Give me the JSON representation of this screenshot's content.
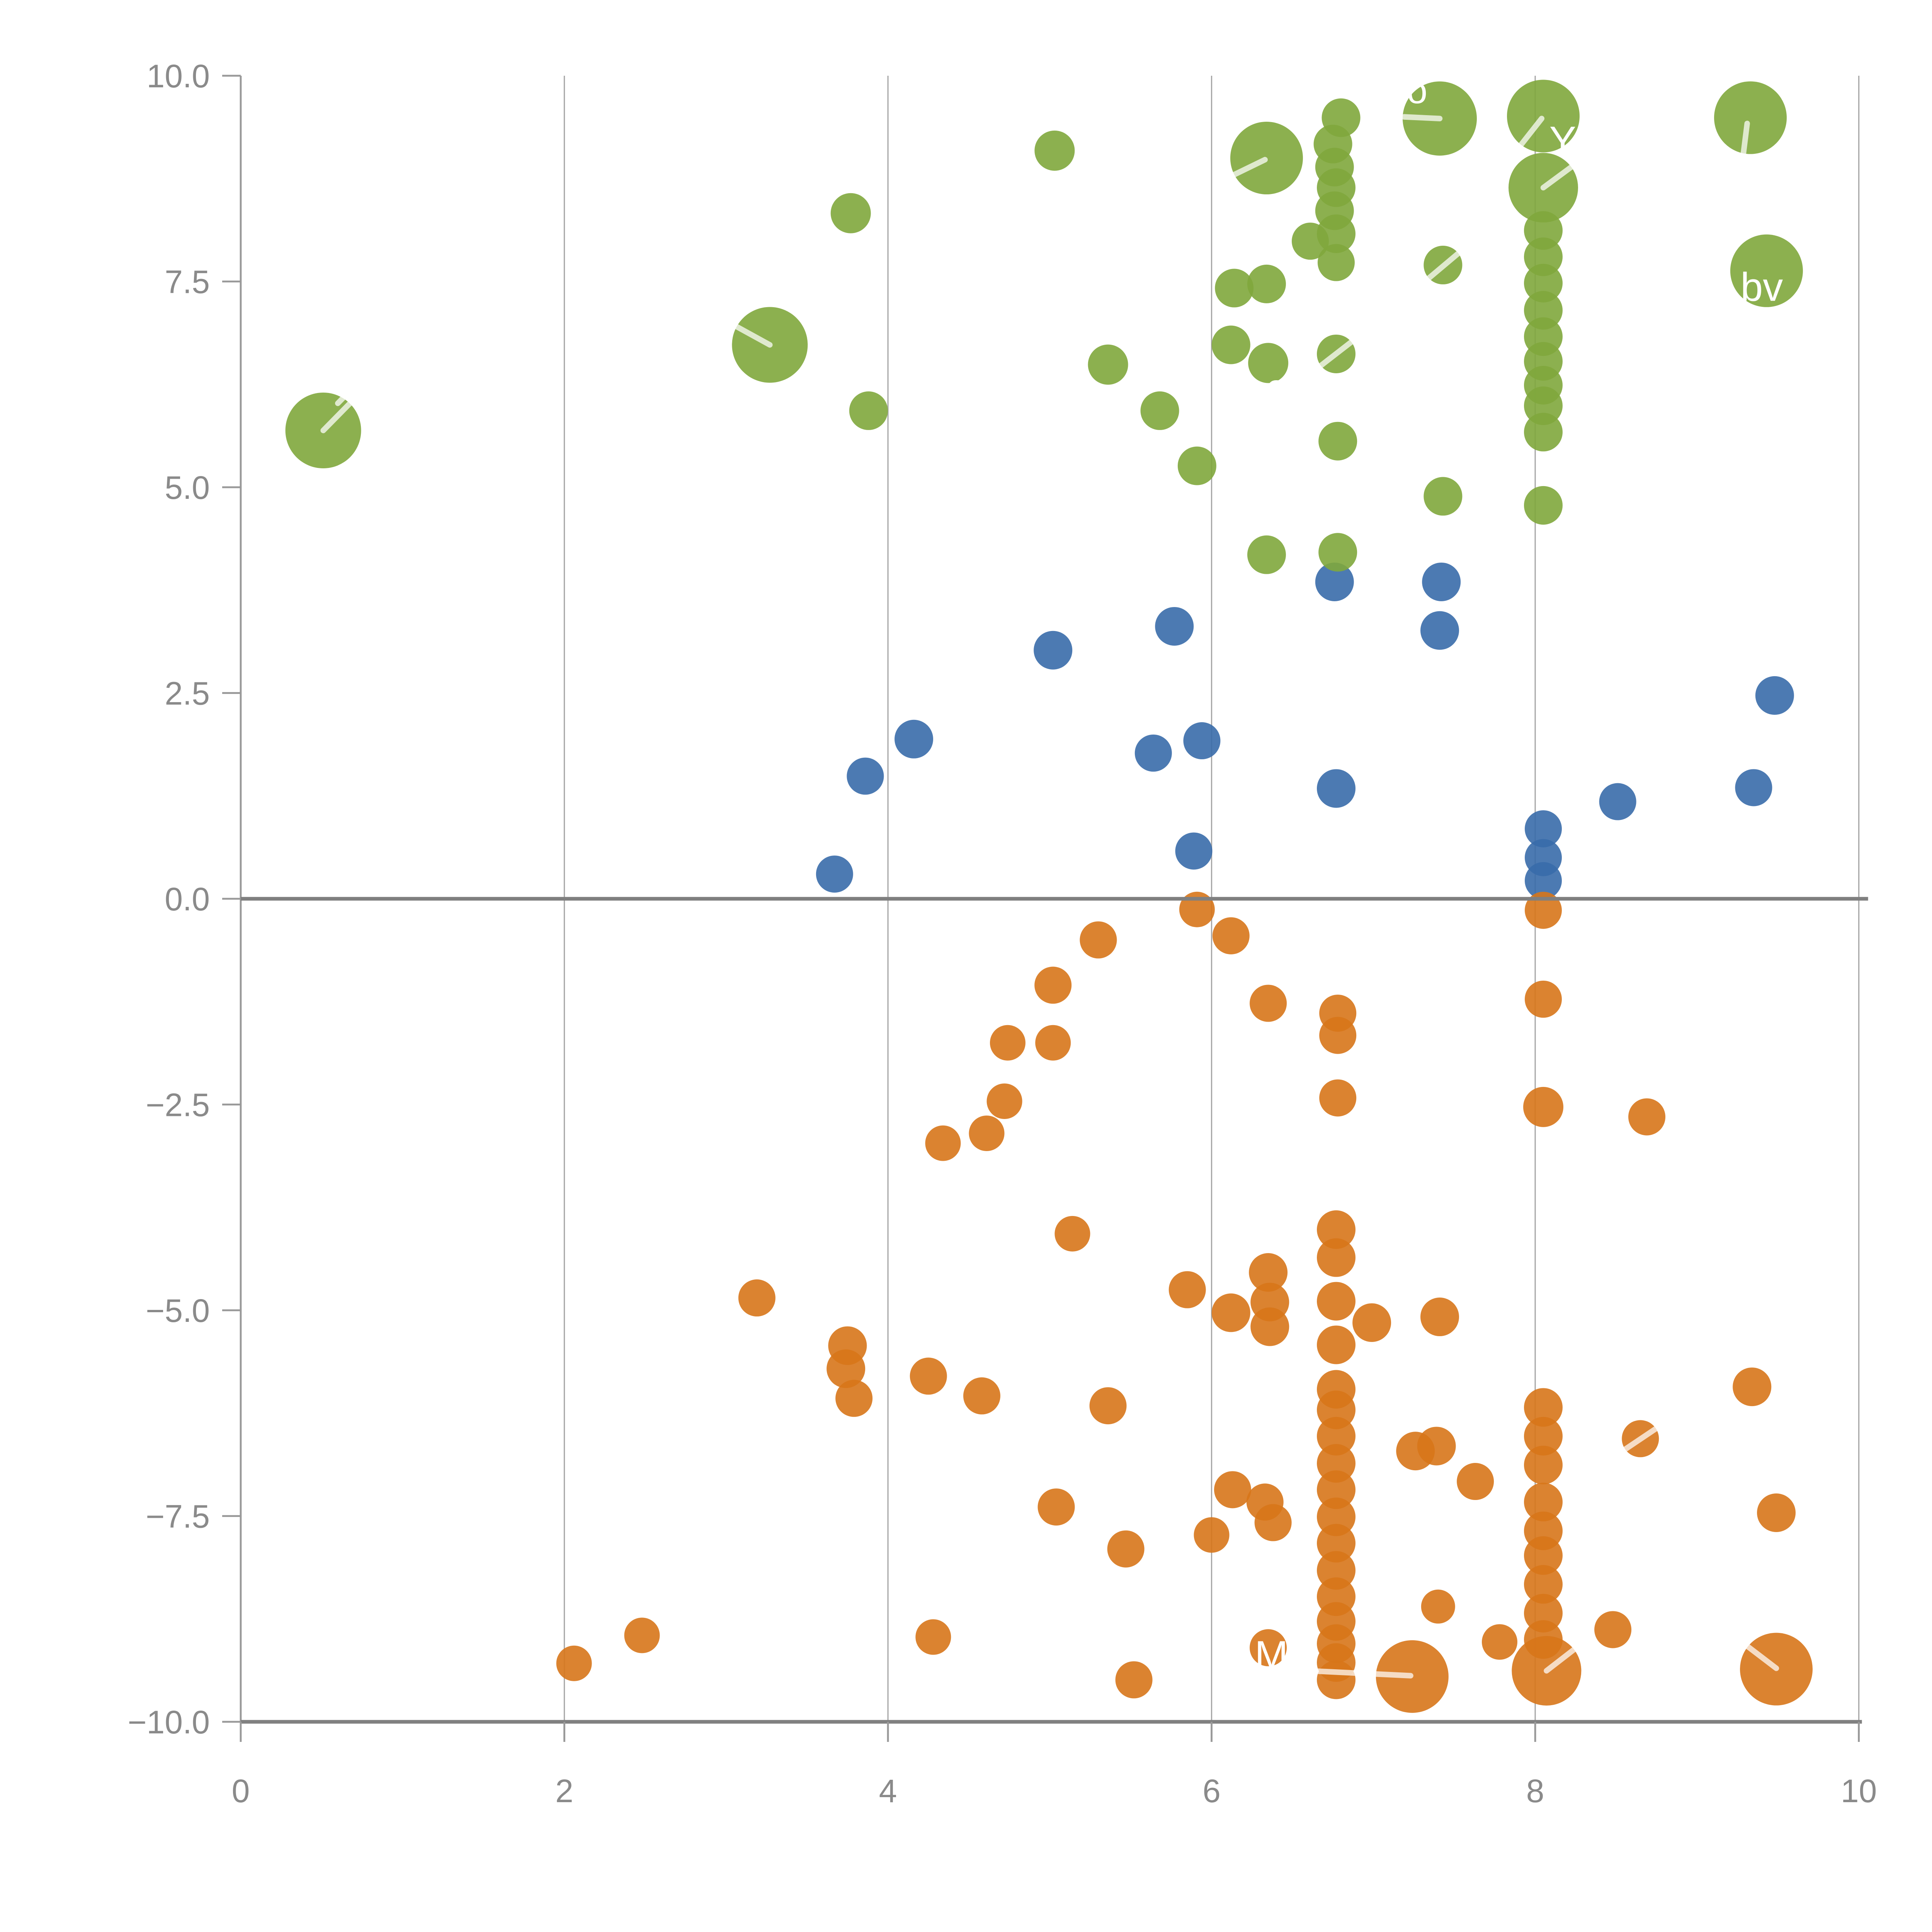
{
  "chart_data": {
    "type": "scatter",
    "title": "",
    "xlabel": "",
    "ylabel": "",
    "xlim": [
      0,
      10
    ],
    "ylim": [
      -10,
      10
    ],
    "x_tick_labels": [
      "0",
      "2",
      "4",
      "6",
      "8",
      "10"
    ],
    "x_tick_values": [
      0,
      2,
      4,
      6,
      8,
      10
    ],
    "y_tick_labels": [
      "10.0",
      "7.5",
      "5.0",
      "2.5",
      "0.0",
      "−2.5",
      "−5.0",
      "−7.5",
      "−10.0"
    ],
    "y_tick_values": [
      10,
      7.5,
      5,
      2.5,
      0,
      -2.5,
      -5,
      -7.5,
      -10
    ],
    "grid": {
      "vertical_at": [
        2,
        4,
        6,
        8,
        10
      ],
      "horizontal": false,
      "zero_line_y": 0
    },
    "colors": {
      "green": "#7FA73C",
      "blue": "#386BAA",
      "orange": "#D7751A",
      "marker_opacity": 0.9,
      "spine": "#999999",
      "bottom_spine": "#808080",
      "zero_line": "#7F7F7F",
      "gridline": "#A8A8A8",
      "tick_label": "#8A8A8A",
      "annotation": "#FFFFFF"
    },
    "series": [
      {
        "name": "blue",
        "color": "#386BAA",
        "points": [
          [
            3.67,
            0.3,
            12
          ],
          [
            3.86,
            1.49,
            12
          ],
          [
            4.16,
            1.94,
            12.5
          ],
          [
            5.02,
            3.02,
            12.5
          ],
          [
            5.77,
            3.31,
            12.5
          ],
          [
            5.64,
            1.77,
            12
          ],
          [
            5.94,
            1.92,
            12
          ],
          [
            5.89,
            0.58,
            12
          ],
          [
            6.76,
            3.85,
            12.5
          ],
          [
            7.42,
            3.85,
            12.5
          ],
          [
            7.41,
            3.26,
            12.5
          ],
          [
            6.77,
            1.34,
            12.5
          ],
          [
            8.51,
            1.18,
            12
          ],
          [
            9.35,
            1.35,
            12
          ],
          [
            9.48,
            2.47,
            12.5
          ],
          [
            8.05,
            0.85,
            12
          ],
          [
            8.05,
            0.5,
            12
          ],
          [
            8.05,
            0.22,
            12
          ]
        ]
      },
      {
        "name": "green",
        "color": "#7FA73C",
        "points": [
          [
            0.51,
            5.69,
            24.5
          ],
          [
            3.27,
            6.73,
            24.5
          ],
          [
            3.77,
            8.33,
            13
          ],
          [
            3.88,
            5.93,
            12.5
          ],
          [
            5.03,
            9.09,
            13
          ],
          [
            5.36,
            6.49,
            13
          ],
          [
            5.68,
            5.93,
            12.5
          ],
          [
            5.91,
            5.26,
            12.5
          ],
          [
            6.34,
            9.0,
            23.5
          ],
          [
            6.8,
            9.49,
            12.5
          ],
          [
            6.75,
            9.17,
            12.5
          ],
          [
            6.76,
            8.89,
            12.5
          ],
          [
            6.77,
            8.64,
            12.5
          ],
          [
            6.76,
            8.36,
            12.5
          ],
          [
            6.77,
            8.08,
            12.5
          ],
          [
            6.61,
            7.99,
            12
          ],
          [
            6.77,
            7.73,
            12
          ],
          [
            6.12,
            6.73,
            12.5
          ],
          [
            6.35,
            6.51,
            13
          ],
          [
            6.77,
            6.62,
            12.5
          ],
          [
            6.14,
            7.42,
            12.5
          ],
          [
            6.34,
            7.47,
            12.5
          ],
          [
            7.41,
            9.48,
            24
          ],
          [
            7.43,
            7.7,
            12.5
          ],
          [
            8.05,
            9.51,
            23.5
          ],
          [
            8.05,
            8.64,
            22.5
          ],
          [
            8.05,
            8.12,
            12.5
          ],
          [
            8.05,
            7.8,
            12.5
          ],
          [
            8.05,
            7.48,
            12.5
          ],
          [
            8.05,
            7.15,
            12.5
          ],
          [
            8.05,
            6.83,
            12.5
          ],
          [
            8.05,
            6.53,
            12.5
          ],
          [
            8.05,
            6.24,
            12.5
          ],
          [
            8.05,
            5.99,
            12.5
          ],
          [
            8.05,
            5.67,
            12.5
          ],
          [
            8.05,
            4.78,
            12.5
          ],
          [
            9.33,
            9.49,
            23.5
          ],
          [
            9.43,
            7.63,
            23.5
          ],
          [
            6.78,
            4.21,
            12.5
          ],
          [
            6.34,
            4.18,
            12.5
          ],
          [
            7.43,
            4.89,
            12.5
          ],
          [
            6.78,
            5.56,
            12.5
          ]
        ]
      },
      {
        "name": "orange",
        "color": "#D7751A",
        "points": [
          [
            5.91,
            -0.13,
            11.5
          ],
          [
            6.12,
            -0.45,
            12
          ],
          [
            5.3,
            -0.5,
            12
          ],
          [
            5.02,
            -1.05,
            12
          ],
          [
            6.35,
            -1.27,
            12
          ],
          [
            4.74,
            -1.75,
            11.5
          ],
          [
            5.02,
            -1.75,
            11.5
          ],
          [
            4.72,
            -2.46,
            11.5
          ],
          [
            4.61,
            -2.85,
            11.5
          ],
          [
            4.34,
            -2.97,
            11.5
          ],
          [
            5.14,
            -4.07,
            11.5
          ],
          [
            6.78,
            -1.39,
            12
          ],
          [
            6.78,
            -1.66,
            12
          ],
          [
            6.78,
            -2.42,
            12
          ],
          [
            8.05,
            -0.14,
            12
          ],
          [
            8.05,
            -1.22,
            12
          ],
          [
            8.05,
            -2.53,
            13
          ],
          [
            8.69,
            -2.65,
            12
          ],
          [
            3.19,
            -4.85,
            12
          ],
          [
            3.75,
            -5.43,
            12.5
          ],
          [
            3.74,
            -5.71,
            12.5
          ],
          [
            3.79,
            -6.07,
            12
          ],
          [
            4.25,
            -5.8,
            12
          ],
          [
            4.58,
            -6.04,
            12
          ],
          [
            5.36,
            -6.16,
            12
          ],
          [
            5.04,
            -7.39,
            12
          ],
          [
            5.47,
            -7.9,
            12
          ],
          [
            6.0,
            -7.73,
            11.5
          ],
          [
            6.13,
            -7.18,
            12
          ],
          [
            6.33,
            -7.33,
            12
          ],
          [
            6.38,
            -7.58,
            12
          ],
          [
            2.06,
            -9.29,
            11.5
          ],
          [
            2.48,
            -8.95,
            11.5
          ],
          [
            4.28,
            -8.97,
            11.5
          ],
          [
            5.52,
            -9.49,
            12
          ],
          [
            5.85,
            -4.75,
            12
          ],
          [
            6.35,
            -4.54,
            12.5
          ],
          [
            6.36,
            -4.9,
            12.5
          ],
          [
            6.36,
            -5.2,
            12.5
          ],
          [
            6.12,
            -5.03,
            12.5
          ],
          [
            6.99,
            -5.15,
            12.5
          ],
          [
            6.77,
            -4.02,
            12.5
          ],
          [
            6.77,
            -4.36,
            12.5
          ],
          [
            6.77,
            -4.89,
            12.5
          ],
          [
            6.77,
            -5.42,
            12.5
          ],
          [
            6.77,
            -5.96,
            12.5
          ],
          [
            6.77,
            -6.21,
            12.5
          ],
          [
            6.77,
            -6.53,
            12.5
          ],
          [
            6.77,
            -6.86,
            12.5
          ],
          [
            6.77,
            -7.18,
            12.5
          ],
          [
            6.77,
            -7.51,
            12.5
          ],
          [
            6.77,
            -7.83,
            12.5
          ],
          [
            6.77,
            -8.16,
            12.5
          ],
          [
            6.77,
            -8.48,
            12.5
          ],
          [
            6.77,
            -8.78,
            12.5
          ],
          [
            6.77,
            -9.05,
            12.5
          ],
          [
            6.77,
            -9.28,
            12.5
          ],
          [
            6.77,
            -9.49,
            12.5
          ],
          [
            7.41,
            -5.08,
            12.5
          ],
          [
            7.26,
            -6.71,
            12.5
          ],
          [
            7.39,
            -6.65,
            12.5
          ],
          [
            7.63,
            -7.08,
            12
          ],
          [
            7.4,
            -8.6,
            11
          ],
          [
            7.78,
            -9.03,
            11.5
          ],
          [
            7.24,
            -9.45,
            23.5
          ],
          [
            6.35,
            -9.1,
            12
          ],
          [
            8.65,
            -6.56,
            12
          ],
          [
            9.34,
            -5.93,
            12.5
          ],
          [
            9.49,
            -7.46,
            12.5
          ],
          [
            8.48,
            -8.88,
            12
          ],
          [
            9.49,
            -9.36,
            23.5
          ],
          [
            8.07,
            -9.38,
            22.5
          ],
          [
            8.05,
            -6.18,
            12.5
          ],
          [
            8.05,
            -6.53,
            12.5
          ],
          [
            8.05,
            -6.88,
            12.5
          ],
          [
            8.05,
            -7.33,
            12.5
          ],
          [
            8.05,
            -7.68,
            12.5
          ],
          [
            8.05,
            -7.98,
            12.5
          ],
          [
            8.05,
            -8.33,
            12.5
          ],
          [
            8.05,
            -8.68,
            12.5
          ],
          [
            8.05,
            -9.0,
            12.5
          ]
        ]
      }
    ],
    "annotations": {
      "texts": [
        {
          "label": "o",
          "x": 7.27,
          "y": 9.83,
          "size": 24
        },
        {
          "label": "Y",
          "x": 8.17,
          "y": 9.22,
          "size": 26
        },
        {
          "label": "bv",
          "x": 9.4,
          "y": 7.44,
          "size": 26
        },
        {
          "label": "e",
          "x": 6.4,
          "y": 6.22,
          "size": 24
        },
        {
          "label": "M",
          "x": 6.37,
          "y": -9.18,
          "size": 26
        }
      ],
      "connectors": [
        [
          0.51,
          5.69,
          0.73,
          6.13
        ],
        [
          0.6,
          6.02,
          0.67,
          6.16
        ],
        [
          3.02,
          7.0,
          3.27,
          6.73
        ],
        [
          6.1,
          8.76,
          6.33,
          8.98
        ],
        [
          7.19,
          9.5,
          7.41,
          9.48
        ],
        [
          7.9,
          9.13,
          8.04,
          9.48
        ],
        [
          8.05,
          8.64,
          8.25,
          8.93
        ],
        [
          9.31,
          9.42,
          9.28,
          8.95
        ],
        [
          6.67,
          6.47,
          6.88,
          6.79
        ],
        [
          7.33,
          7.52,
          7.56,
          7.9
        ],
        [
          6.6,
          -9.38,
          7.23,
          -9.44
        ],
        [
          8.07,
          -9.38,
          8.3,
          -9.03
        ],
        [
          9.27,
          -9.02,
          9.49,
          -9.35
        ],
        [
          8.54,
          -6.71,
          8.79,
          -6.38
        ]
      ]
    }
  }
}
